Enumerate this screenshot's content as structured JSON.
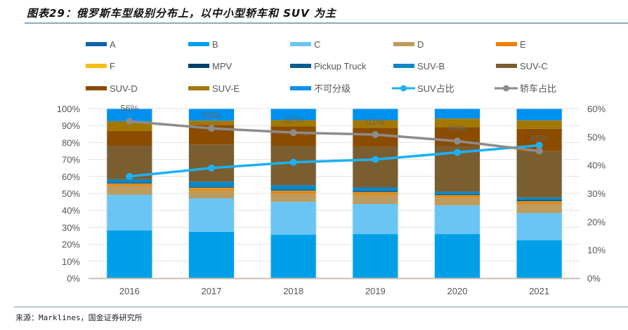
{
  "header": {
    "title": "图表29：俄罗斯车型级别分布上，以中小型轿车和 SUV 为主"
  },
  "footer": {
    "source": "来源：Marklines，国金证券研究所"
  },
  "chart_data": {
    "type": "bar",
    "subtype": "stacked-100-with-lines",
    "title": "图表29：俄罗斯车型级别分布上，以中小型轿车和 SUV 为主",
    "categories": [
      "2016",
      "2017",
      "2018",
      "2019",
      "2020",
      "2021"
    ],
    "y_left": {
      "ylim": [
        0,
        100
      ],
      "ticks": [
        "0%",
        "10%",
        "20%",
        "30%",
        "40%",
        "50%",
        "60%",
        "70%",
        "80%",
        "90%",
        "100%"
      ]
    },
    "y_right": {
      "ylim": [
        0,
        60
      ],
      "ticks": [
        "0%",
        "10%",
        "20%",
        "30%",
        "40%",
        "50%",
        "60%"
      ]
    },
    "grid": true,
    "legend_position": "top",
    "series": [
      {
        "name": "A",
        "color": "#0d63ad",
        "values": [
          0,
          0,
          0,
          0,
          0,
          0
        ]
      },
      {
        "name": "B",
        "color": "#00a0e9",
        "values": [
          28.1,
          27.3,
          25.6,
          26.0,
          26.0,
          22.3
        ]
      },
      {
        "name": "C",
        "color": "#6bc5f4",
        "values": [
          21.1,
          19.8,
          19.4,
          17.8,
          16.9,
          16.1
        ]
      },
      {
        "name": "D",
        "color": "#be9b5c",
        "values": [
          5.3,
          4.5,
          5.0,
          5.4,
          4.5,
          5.4
        ]
      },
      {
        "name": "E",
        "color": "#ed8200",
        "values": [
          0.9,
          1.2,
          1.2,
          1.2,
          1.2,
          1.2
        ]
      },
      {
        "name": "F",
        "color": "#f9bd15",
        "values": [
          0.3,
          0.4,
          0.3,
          0.3,
          0.3,
          0.3
        ]
      },
      {
        "name": "MPV",
        "color": "#003e70",
        "values": [
          0.4,
          0.4,
          0.3,
          0.4,
          0.3,
          0.4
        ]
      },
      {
        "name": "Pickup Truck",
        "color": "#005e8e",
        "values": [
          0.4,
          0.4,
          0.5,
          0.5,
          0.5,
          0.6
        ]
      },
      {
        "name": "SUV-B",
        "color": "#0b87c7",
        "values": [
          1.8,
          2.9,
          2.5,
          1.9,
          1.3,
          1.3
        ]
      },
      {
        "name": "SUV-C",
        "color": "#7a5e30",
        "values": [
          19.8,
          21.9,
          23.1,
          24.0,
          26.9,
          27.3
        ]
      },
      {
        "name": "SUV-D",
        "color": "#8b4c00",
        "values": [
          8.7,
          11.6,
          11.6,
          11.2,
          11.2,
          13.2
        ]
      },
      {
        "name": "SUV-E",
        "color": "#a27800",
        "values": [
          5.8,
          2.5,
          3.7,
          4.5,
          5.0,
          5.0
        ]
      },
      {
        "name": "不可分级",
        "color": "#0091ef",
        "values": [
          7.4,
          7.1,
          6.8,
          6.8,
          5.9,
          6.9
        ]
      }
    ],
    "lines": [
      {
        "name": "SUV占比",
        "color": "#1cb1f5",
        "axis": "right",
        "values": [
          36,
          39,
          41,
          42,
          44.5,
          47
        ],
        "labels": []
      },
      {
        "name": "轿车占比",
        "color": "#8c8c8c",
        "axis": "right",
        "values": [
          55.5,
          53,
          51.5,
          50.8,
          48.5,
          45
        ],
        "labels": [
          "56%",
          "53%",
          "52%",
          "51%",
          "49%",
          "45%"
        ]
      }
    ]
  }
}
